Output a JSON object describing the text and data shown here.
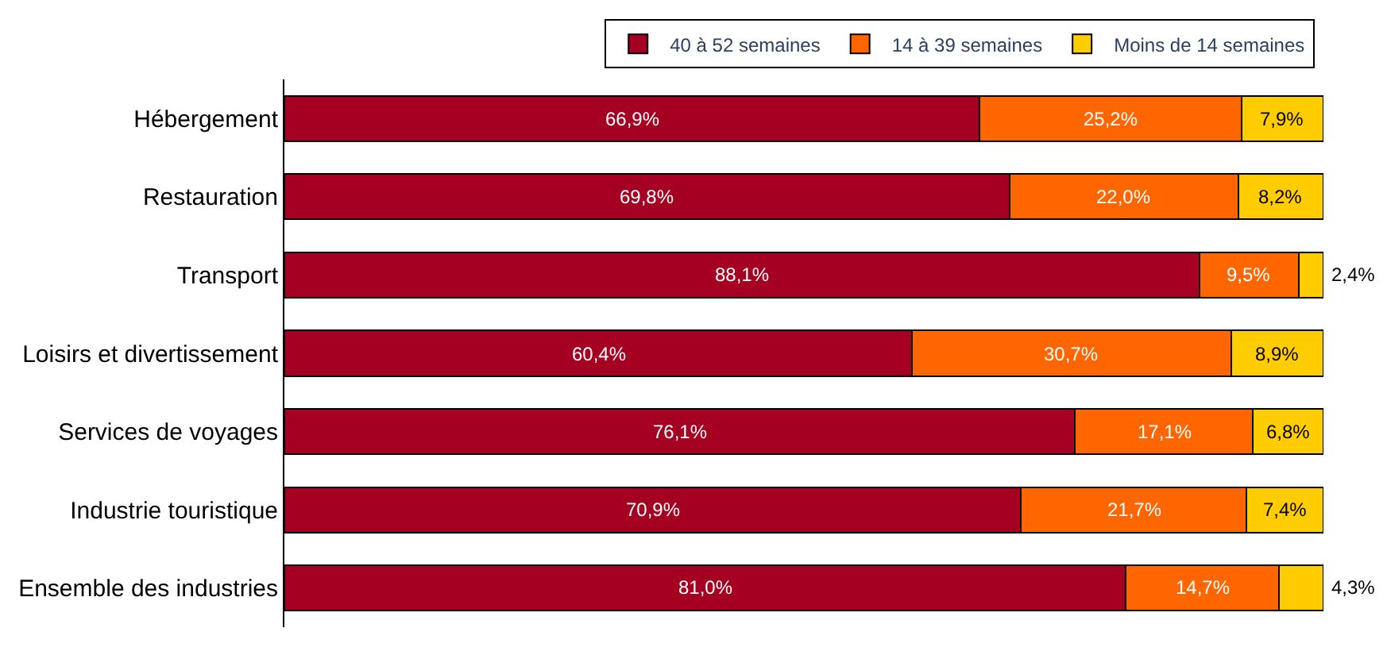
{
  "chart_data": {
    "type": "bar",
    "orientation": "horizontal",
    "stacked": true,
    "categories": [
      "Hébergement",
      "Restauration",
      "Transport",
      "Loisirs et divertissement",
      "Services de voyages",
      "Industrie touristique",
      "Ensemble des industries"
    ],
    "series": [
      {
        "name": "40 à 52 semaines",
        "color": "#a50021",
        "values": [
          66.9,
          69.8,
          88.1,
          60.4,
          76.1,
          70.9,
          81.0
        ],
        "value_labels": [
          "66,9%",
          "69,8%",
          "88,1%",
          "60,4%",
          "76,1%",
          "70,9%",
          "81,0%"
        ]
      },
      {
        "name": "14 à 39 semaines",
        "color": "#ff6600",
        "values": [
          25.2,
          22.0,
          9.5,
          30.7,
          17.1,
          21.7,
          14.7
        ],
        "value_labels": [
          "25,2%",
          "22,0%",
          "9,5%",
          "30,7%",
          "17,1%",
          "21,7%",
          "14,7%"
        ]
      },
      {
        "name": "Moins de 14 semaines",
        "color": "#ffcc00",
        "values": [
          7.9,
          8.2,
          2.4,
          8.9,
          6.8,
          7.4,
          4.3
        ],
        "value_labels": [
          "7,9%",
          "8,2%",
          "2,4%",
          "8,9%",
          "6,8%",
          "7,4%",
          "4,3%"
        ]
      }
    ],
    "xlim": [
      0,
      100
    ],
    "tick_labels": "y",
    "legend": "top"
  }
}
